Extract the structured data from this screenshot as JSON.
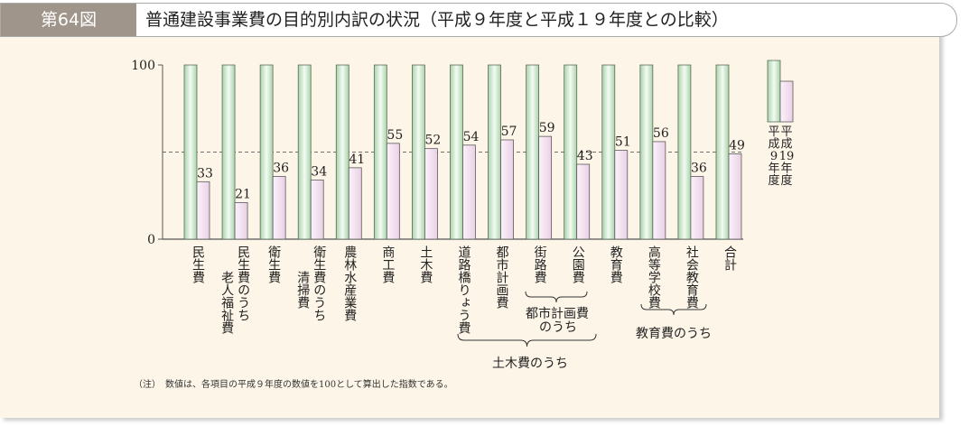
{
  "header": {
    "figure_number": "第64図",
    "title": "普通建設事業費の目的別内訳の状況（平成９年度と平成１９年度との比較）"
  },
  "chart_data": {
    "type": "bar",
    "title": "普通建設事業費の目的別内訳の状況（平成９年度と平成１９年度との比較）",
    "ylim": [
      0,
      100
    ],
    "yticks": [
      "0",
      "100"
    ],
    "reference_line": 50,
    "categories": [
      {
        "lines": [
          "民生費"
        ]
      },
      {
        "lines": [
          "民生費のうち",
          "老人福祉費"
        ]
      },
      {
        "lines": [
          "衛生費"
        ]
      },
      {
        "lines": [
          "衛生費のうち",
          "清掃費"
        ]
      },
      {
        "lines": [
          "農林水産業費"
        ]
      },
      {
        "lines": [
          "商工費"
        ]
      },
      {
        "lines": [
          "土木費"
        ]
      },
      {
        "lines": [
          "道路橋りょう費"
        ]
      },
      {
        "lines": [
          "都市計画費"
        ]
      },
      {
        "lines": [
          "街路費"
        ]
      },
      {
        "lines": [
          "公園費"
        ]
      },
      {
        "lines": [
          "教育費"
        ]
      },
      {
        "lines": [
          "高等学校費"
        ]
      },
      {
        "lines": [
          "社会教育費"
        ]
      },
      {
        "lines": [
          "合計"
        ]
      }
    ],
    "series": [
      {
        "name": "平成9年度",
        "color": "#cfe8cf",
        "values": [
          100,
          100,
          100,
          100,
          100,
          100,
          100,
          100,
          100,
          100,
          100,
          100,
          100,
          100,
          100
        ]
      },
      {
        "name": "平成19年度",
        "color": "#f6e6f3",
        "values": [
          33,
          21,
          36,
          34,
          41,
          55,
          52,
          54,
          57,
          59,
          43,
          51,
          56,
          36,
          49
        ]
      }
    ],
    "legend": {
      "position": "right",
      "labels": [
        [
          "平",
          "成",
          "9",
          "年",
          "度"
        ],
        [
          "平",
          "成",
          "19",
          "年",
          "度"
        ]
      ]
    },
    "groups": [
      {
        "label": "都市計画費のうち",
        "lines": [
          "都市計画費",
          "のうち"
        ]
      },
      {
        "label": "教育費のうち",
        "lines": [
          "教育費のうち"
        ]
      },
      {
        "label": "土木費のうち",
        "lines": [
          "土木費のうち"
        ]
      }
    ]
  },
  "note": "（注）　数値は、各項目の平成９年度の数値を100として算出した指数である。"
}
